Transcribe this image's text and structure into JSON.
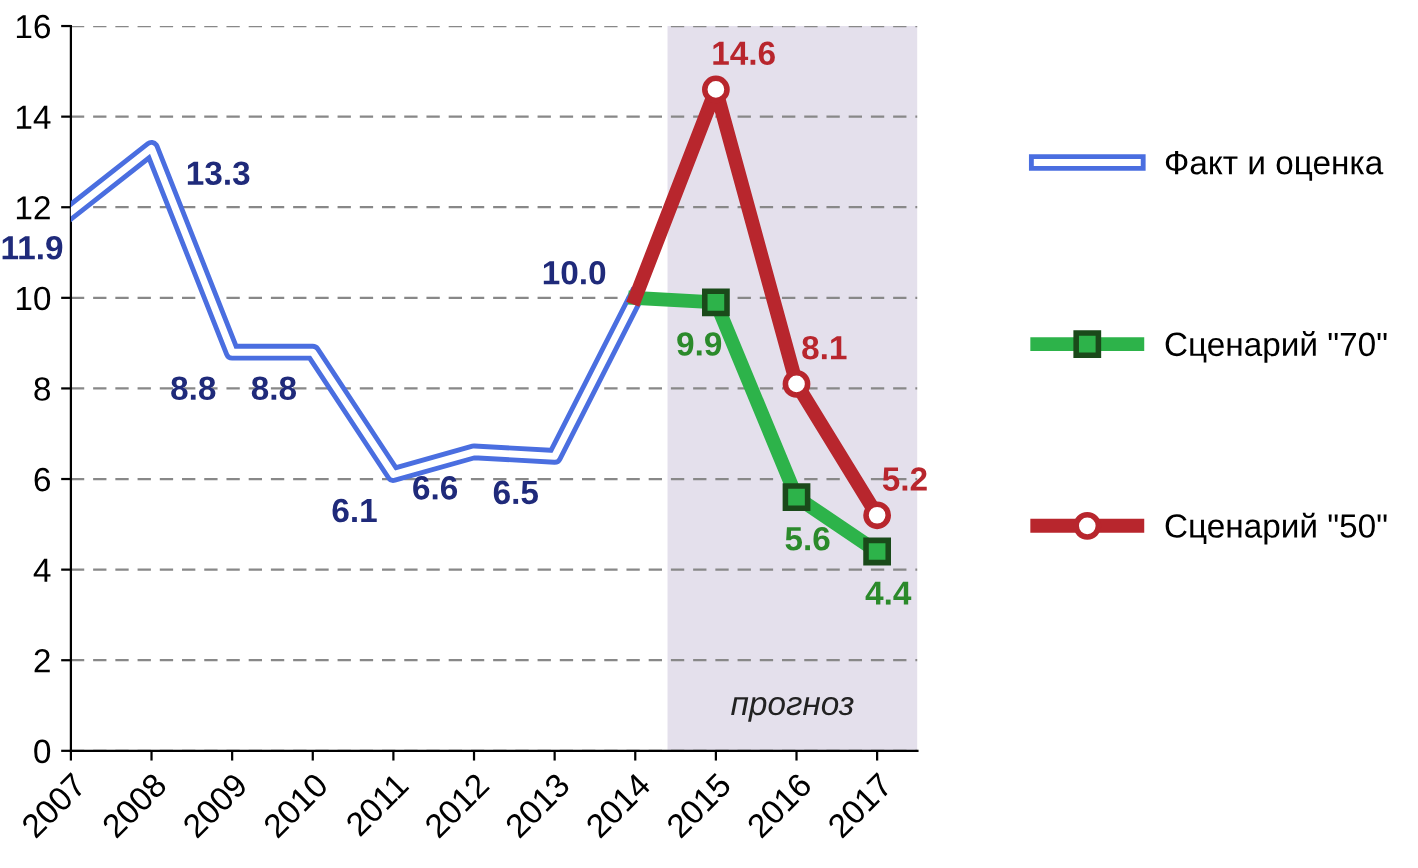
{
  "chart_data": {
    "type": "line",
    "x": [
      2007,
      2008,
      2009,
      2010,
      2011,
      2012,
      2013,
      2014,
      2015,
      2016,
      2017
    ],
    "xlim": [
      2007,
      2017.5
    ],
    "xticks": [
      2007,
      2008,
      2009,
      2010,
      2011,
      2012,
      2013,
      2014,
      2015,
      2016,
      2017
    ],
    "ylim": [
      0,
      16
    ],
    "yticks": [
      0,
      2,
      4,
      6,
      8,
      10,
      12,
      14,
      16
    ],
    "grid": "y",
    "legend": "right",
    "series": [
      {
        "name": "Факт и оценка",
        "color": "#4a6ee0",
        "marker": "none",
        "values": [
          11.9,
          13.3,
          8.8,
          8.8,
          6.1,
          6.6,
          6.5,
          10.0,
          null,
          null,
          null
        ],
        "value_labels": [
          "11.9",
          "13.3",
          "8.8",
          "8.8",
          "6.1",
          "6.6",
          "6.5",
          "10.0",
          null,
          null,
          null
        ]
      },
      {
        "name": "Сценарий \"70\"",
        "color": "#2db34a",
        "marker": "square",
        "values": [
          null,
          null,
          null,
          null,
          null,
          null,
          null,
          10.0,
          9.9,
          5.6,
          4.4
        ],
        "value_labels": [
          null,
          null,
          null,
          null,
          null,
          null,
          null,
          null,
          "9.9",
          "5.6",
          "4.4"
        ]
      },
      {
        "name": "Сценарий \"50\"",
        "color": "#b8262d",
        "marker": "circle",
        "values": [
          null,
          null,
          null,
          null,
          null,
          null,
          null,
          10.0,
          14.6,
          8.1,
          5.2
        ],
        "value_labels": [
          null,
          null,
          null,
          null,
          null,
          null,
          null,
          null,
          "14.6",
          "8.1",
          "5.2"
        ]
      }
    ],
    "bands": [
      {
        "axis": "x",
        "from": 2014.4,
        "to": 2017.5,
        "label": "прогноз",
        "color": "#e4e0ec"
      }
    ]
  }
}
